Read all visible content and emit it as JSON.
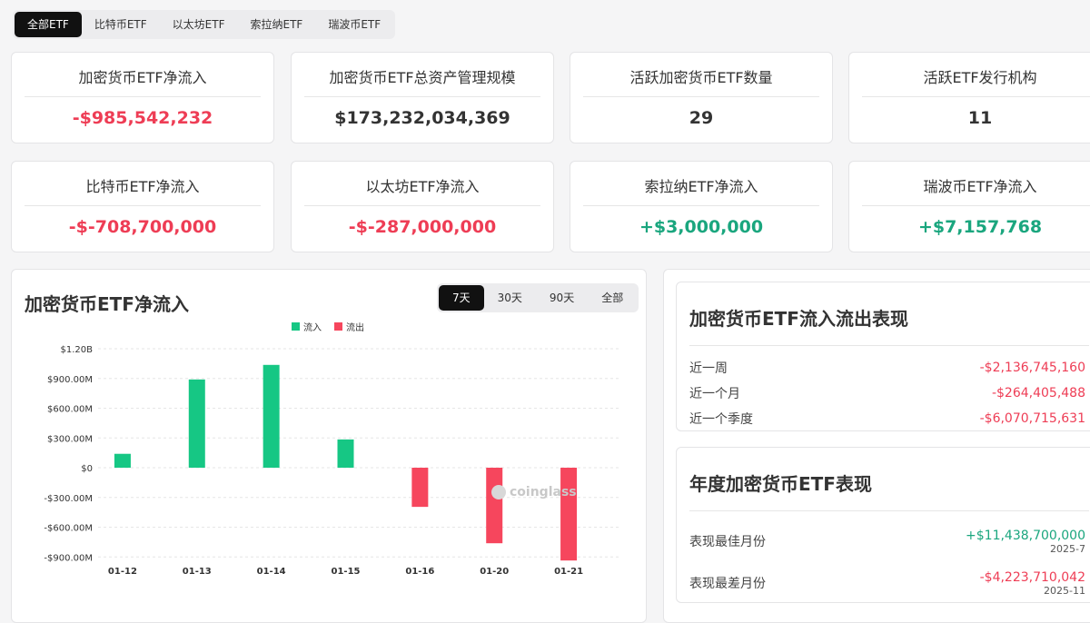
{
  "filter_tabs": [
    "全部ETF",
    "比特币ETF",
    "以太坊ETF",
    "索拉纳ETF",
    "瑞波币ETF"
  ],
  "stats": [
    {
      "title": "加密货币ETF净流入",
      "value": "-$985,542,232",
      "tone": "red"
    },
    {
      "title": "加密货币ETF总资产管理规模",
      "value": "$173,232,034,369",
      "tone": "dark"
    },
    {
      "title": "活跃加密货币ETF数量",
      "value": "29",
      "tone": "dark"
    },
    {
      "title": "活跃ETF发行机构",
      "value": "11",
      "tone": "dark"
    },
    {
      "title": "比特币ETF净流入",
      "value": "-$-708,700,000",
      "tone": "red"
    },
    {
      "title": "以太坊ETF净流入",
      "value": "-$-287,000,000",
      "tone": "red"
    },
    {
      "title": "索拉纳ETF净流入",
      "value": "+$3,000,000",
      "tone": "green"
    },
    {
      "title": "瑞波币ETF净流入",
      "value": "+$7,157,768",
      "tone": "green"
    }
  ],
  "chart_panel": {
    "title": "加密货币ETF净流入",
    "ranges": [
      "7天",
      "30天",
      "90天",
      "全部"
    ],
    "watermark": "coinglass"
  },
  "chart_data": {
    "type": "bar",
    "categories": [
      "01-12",
      "01-13",
      "01-14",
      "01-15",
      "01-16",
      "01-20",
      "01-21"
    ],
    "values": [
      140000000,
      890000000,
      1037000000,
      285000000,
      -395000000,
      -762000000,
      -936000000
    ],
    "legend": [
      {
        "name": "流入",
        "color": "#16c784"
      },
      {
        "name": "流出",
        "color": "#f6465d"
      }
    ],
    "legend_placement": "top-center",
    "yticks": [
      "$1.20B",
      "$900.00M",
      "$600.00M",
      "$300.00M",
      "$0",
      "-$300.00M",
      "-$600.00M",
      "-$900.00M"
    ],
    "ytick_values": [
      1200000000,
      900000000,
      600000000,
      300000000,
      0,
      -300000000,
      -600000000,
      -900000000
    ],
    "ylim": [
      -950000000,
      1200000000
    ],
    "grid": true
  },
  "flow": {
    "title": "加密货币ETF流入流出表现",
    "rows": [
      {
        "label": "近一周",
        "value": "-$2,136,745,160"
      },
      {
        "label": "近一个月",
        "value": "-$264,405,488"
      },
      {
        "label": "近一个季度",
        "value": "-$6,070,715,631"
      }
    ]
  },
  "yearly": {
    "title": "年度加密货币ETF表现",
    "rows": [
      {
        "label": "表现最佳月份",
        "value": "+$11,438,700,000",
        "date": "2025-7",
        "tone": "green"
      },
      {
        "label": "表现最差月份",
        "value": "-$4,223,710,042",
        "date": "2025-11",
        "tone": "red"
      }
    ]
  },
  "colors": {
    "positive": "#1aa67e",
    "negative": "#ee3d55",
    "bar_in": "#16c784",
    "bar_out": "#f6465d"
  }
}
